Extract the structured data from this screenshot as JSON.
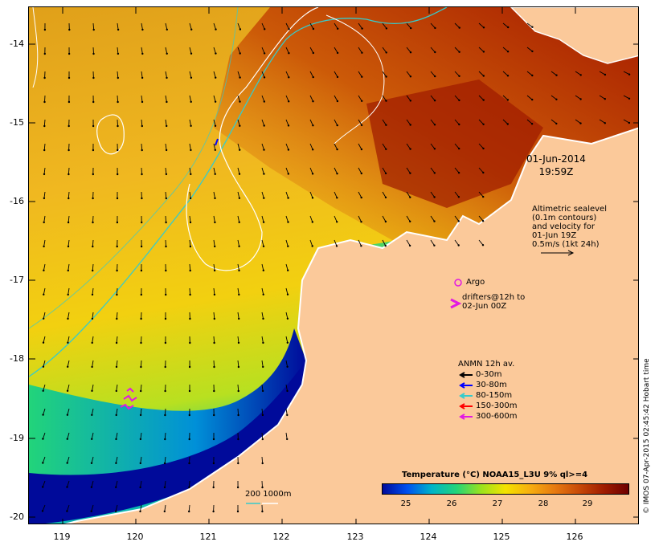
{
  "map": {
    "lat_ticks": [
      "-14",
      "-15",
      "-16",
      "-17",
      "-18",
      "-19",
      "-20"
    ],
    "lon_ticks": [
      "119",
      "120",
      "121",
      "122",
      "123",
      "124",
      "125",
      "126"
    ],
    "lon_range": [
      118.6,
      126.7
    ],
    "lat_range": [
      -20.1,
      -13.65
    ],
    "colors": {
      "land": "#fbc99a",
      "deep_ocean": "#000a9a",
      "coast": "#ffffff",
      "isobath_200": "#36cbcb",
      "isobath_1000": "#ffffff"
    }
  },
  "date": {
    "line1": "01-Jun-2014",
    "line2": "19:59Z"
  },
  "altimetry_note": [
    "Altimetric sealevel",
    "(0.1m contours)",
    "and velocity for",
    "01-Jun 19Z",
    "0.5m/s (1kt 24h)"
  ],
  "argo": {
    "label": "Argo",
    "color": "#e21ae2"
  },
  "drifters": {
    "line1": "drifters@12h to",
    "line2": "02-Jun 00Z",
    "color": "#e21ae2"
  },
  "anmn": {
    "title": "ANMN 12h av.",
    "items": [
      {
        "label": "0-30m",
        "color": "#000000"
      },
      {
        "label": "30-80m",
        "color": "#0000ff"
      },
      {
        "label": "80-150m",
        "color": "#36cbcb"
      },
      {
        "label": "150-300m",
        "color": "#ff0000"
      },
      {
        "label": "300-600m",
        "color": "#e21ae2"
      }
    ]
  },
  "isobath_legend": {
    "label": "200  1000m"
  },
  "colorbar": {
    "title": "Temperature (°C) NOAA15_L3U 9% ql>=4",
    "ticks": [
      "25",
      "26",
      "27",
      "28",
      "29"
    ],
    "colors": [
      "#000a9a",
      "#0050f0",
      "#00b4c8",
      "#22d47a",
      "#9ae21e",
      "#f4e200",
      "#f7ae10",
      "#e77a10",
      "#c84a08",
      "#a01c00",
      "#6e0000"
    ]
  },
  "credit": "© IMOS 07-Apr-2015 02:45:42 Hobart time"
}
